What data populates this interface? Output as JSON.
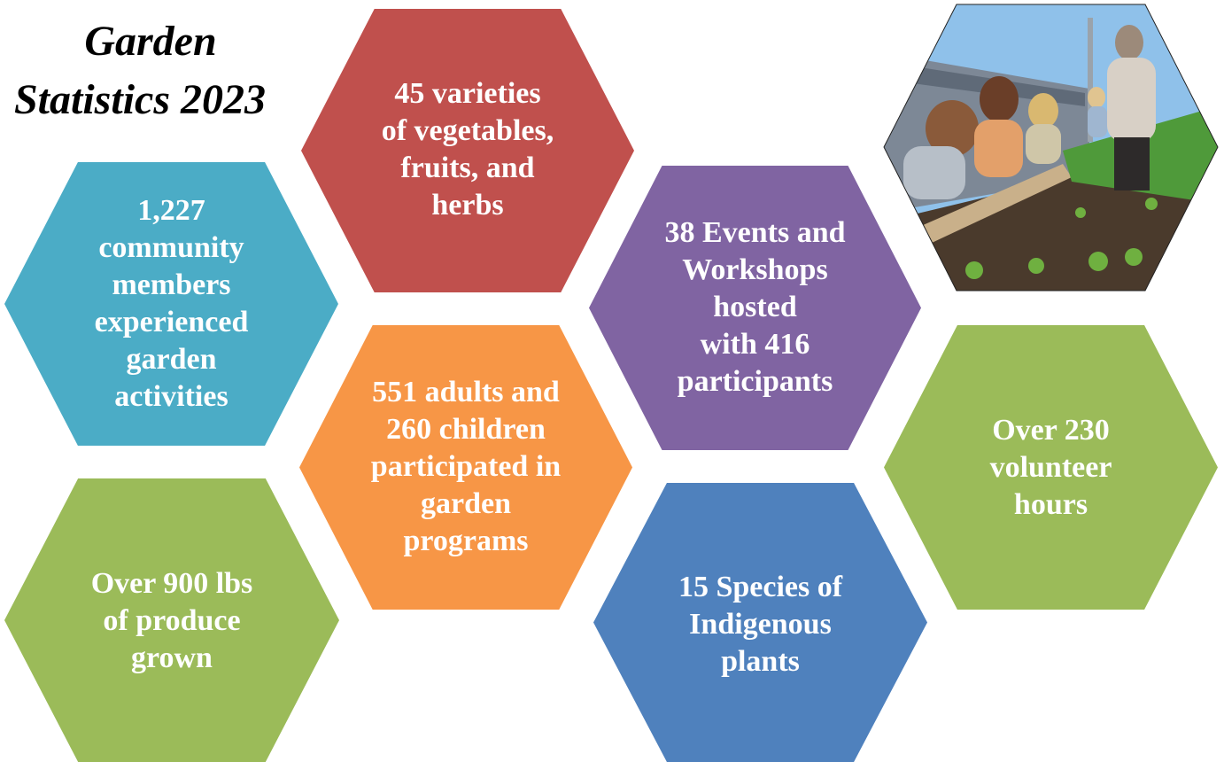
{
  "title": {
    "lines": [
      "Garden",
      "Statistics 2023"
    ]
  },
  "tiles": [
    {
      "lines": [
        "45 varieties",
        "of vegetables,",
        "fruits, and",
        "herbs"
      ]
    },
    {
      "lines": [
        "1,227",
        "community",
        "members",
        "experienced",
        "garden",
        "activities"
      ]
    },
    {
      "lines": [
        "38 Events and",
        "Workshops",
        "hosted",
        "with 416",
        "participants"
      ]
    },
    {
      "lines": [
        "551 adults and",
        "260 children",
        "participated in",
        "garden",
        "programs"
      ]
    },
    {
      "lines": [
        "Over 900 lbs",
        "of produce",
        "grown"
      ]
    },
    {
      "lines": [
        "15 Species of",
        "Indigenous",
        "plants"
      ]
    },
    {
      "lines": [
        "Over 230",
        "volunteer",
        "hours"
      ]
    }
  ]
}
